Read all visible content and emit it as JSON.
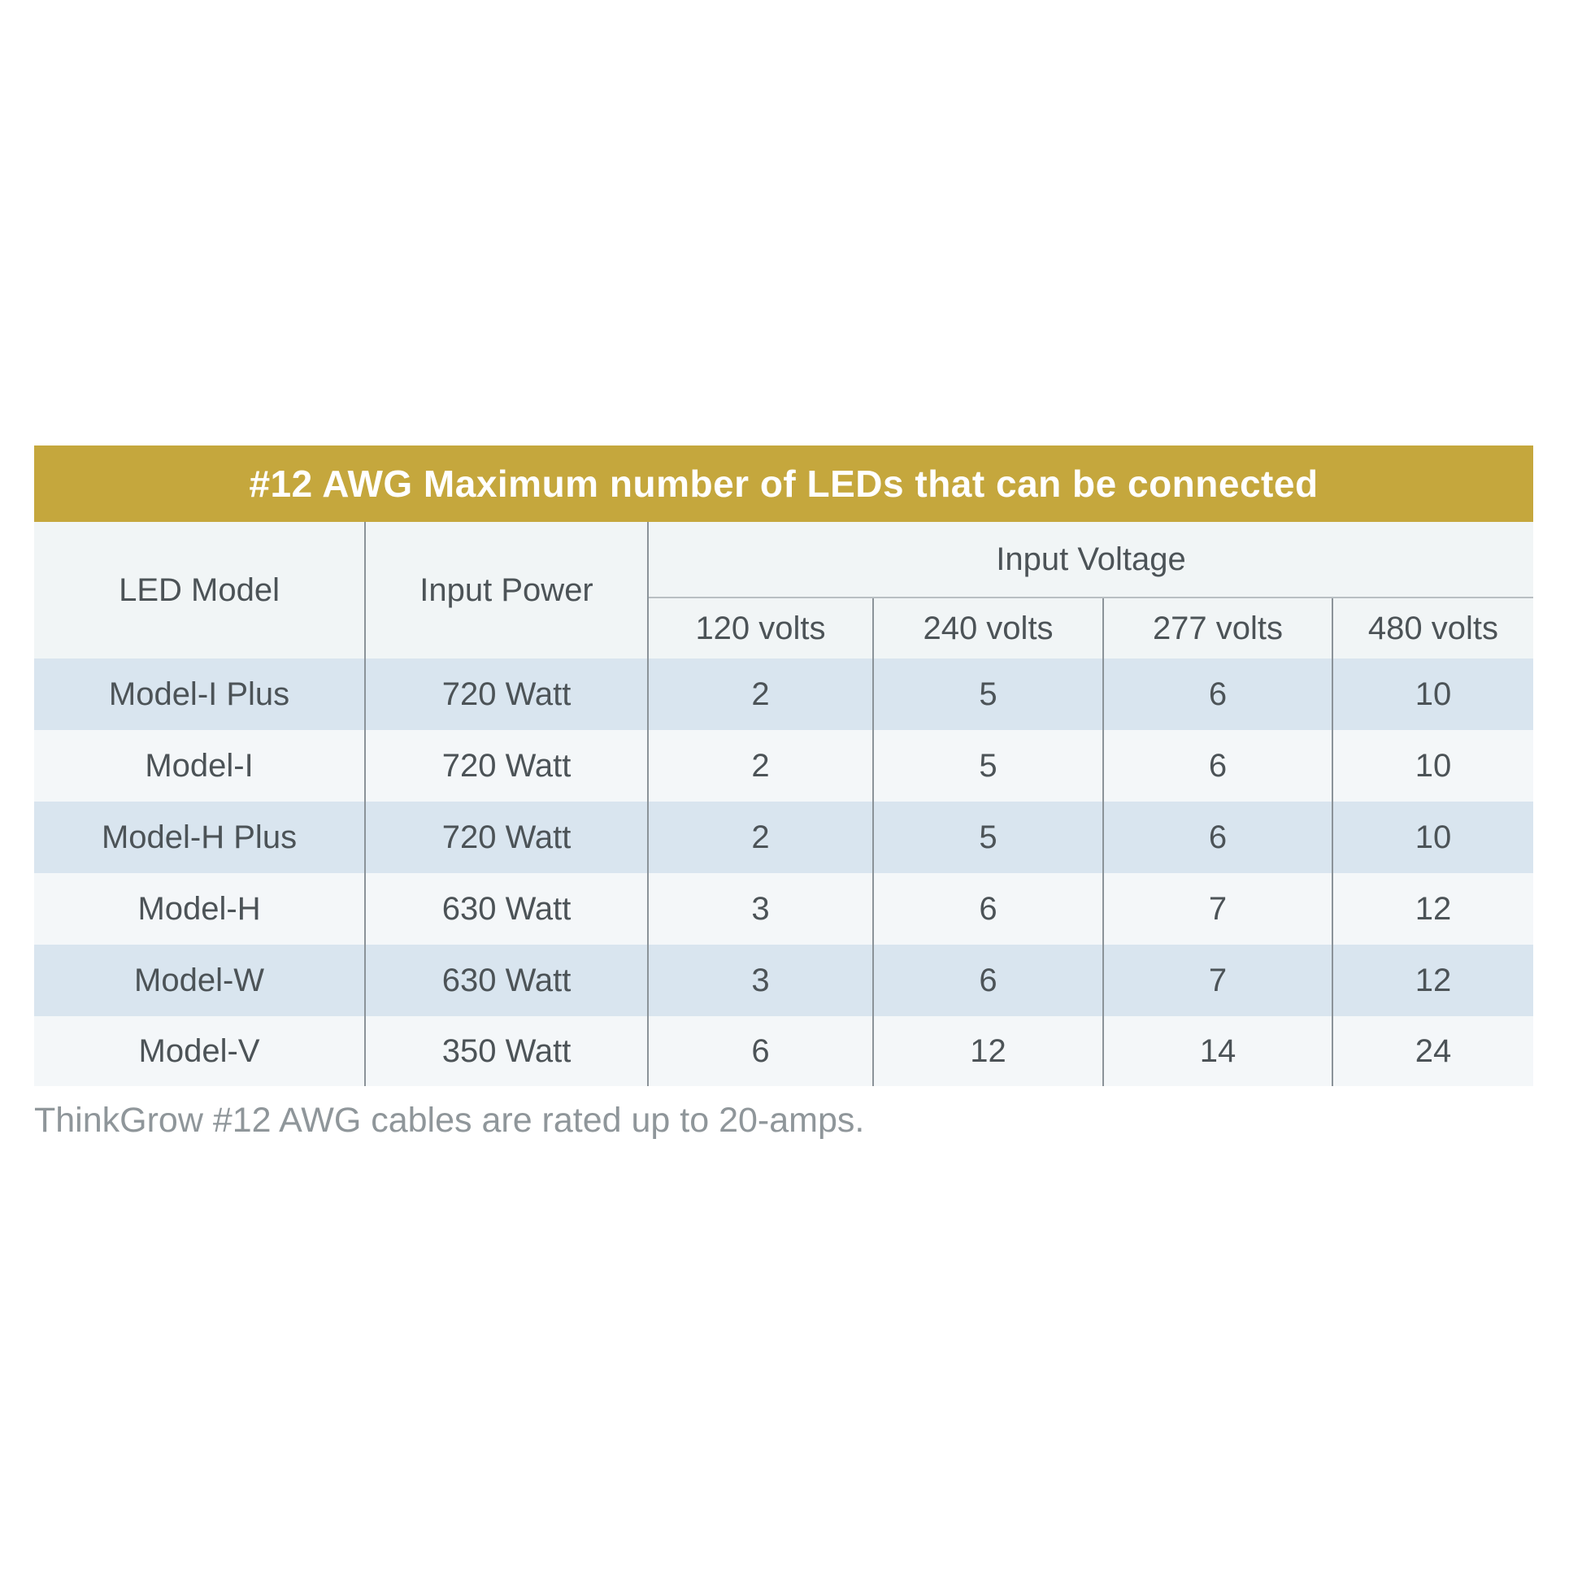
{
  "title": "#12 AWG Maximum number of LEDs that can be connected",
  "table": {
    "headers": {
      "led_model": "LED Model",
      "input_power": "Input Power",
      "input_voltage": "Input Voltage",
      "voltages": [
        "120 volts",
        "240 volts",
        "277 volts",
        "480 volts"
      ]
    },
    "rows": [
      {
        "model": "Model-I Plus",
        "power": "720 Watt",
        "values": [
          "2",
          "5",
          "6",
          "10"
        ]
      },
      {
        "model": "Model-I",
        "power": "720 Watt",
        "values": [
          "2",
          "5",
          "6",
          "10"
        ]
      },
      {
        "model": "Model-H Plus",
        "power": "720 Watt",
        "values": [
          "2",
          "5",
          "6",
          "10"
        ]
      },
      {
        "model": "Model-H",
        "power": "630 Watt",
        "values": [
          "3",
          "6",
          "7",
          "12"
        ]
      },
      {
        "model": "Model-W",
        "power": "630 Watt",
        "values": [
          "3",
          "6",
          "7",
          "12"
        ]
      },
      {
        "model": "Model-V",
        "power": "350 Watt",
        "values": [
          "6",
          "12",
          "14",
          "24"
        ]
      }
    ]
  },
  "footnote": "ThinkGrow #12 AWG cables are rated up to 20-amps.",
  "colors": {
    "title_bg": "#c5a73d",
    "title_text": "#ffffff",
    "header_bg": "#f1f5f6",
    "row_blue": "#d9e5ef",
    "row_light": "#f4f7f9",
    "divider": "#8b9399",
    "subdivider": "#b9bfc3",
    "text": "#4c5357",
    "footnote_text": "#8f969a"
  },
  "chart_data": {
    "type": "table",
    "title": "#12 AWG Maximum number of LEDs that can be connected",
    "columns": [
      "LED Model",
      "Input Power",
      "120 volts",
      "240 volts",
      "277 volts",
      "480 volts"
    ],
    "column_groups": [
      {
        "label": "Input Voltage",
        "spans": [
          "120 volts",
          "240 volts",
          "277 volts",
          "480 volts"
        ]
      }
    ],
    "rows": [
      [
        "Model-I Plus",
        "720 Watt",
        2,
        5,
        6,
        10
      ],
      [
        "Model-I",
        "720 Watt",
        2,
        5,
        6,
        10
      ],
      [
        "Model-H Plus",
        "720 Watt",
        2,
        5,
        6,
        10
      ],
      [
        "Model-H",
        "630 Watt",
        3,
        6,
        7,
        12
      ],
      [
        "Model-W",
        "630 Watt",
        3,
        6,
        7,
        12
      ],
      [
        "Model-V",
        "350 Watt",
        6,
        12,
        14,
        24
      ]
    ],
    "note": "ThinkGrow #12 AWG cables are rated up to 20-amps."
  }
}
